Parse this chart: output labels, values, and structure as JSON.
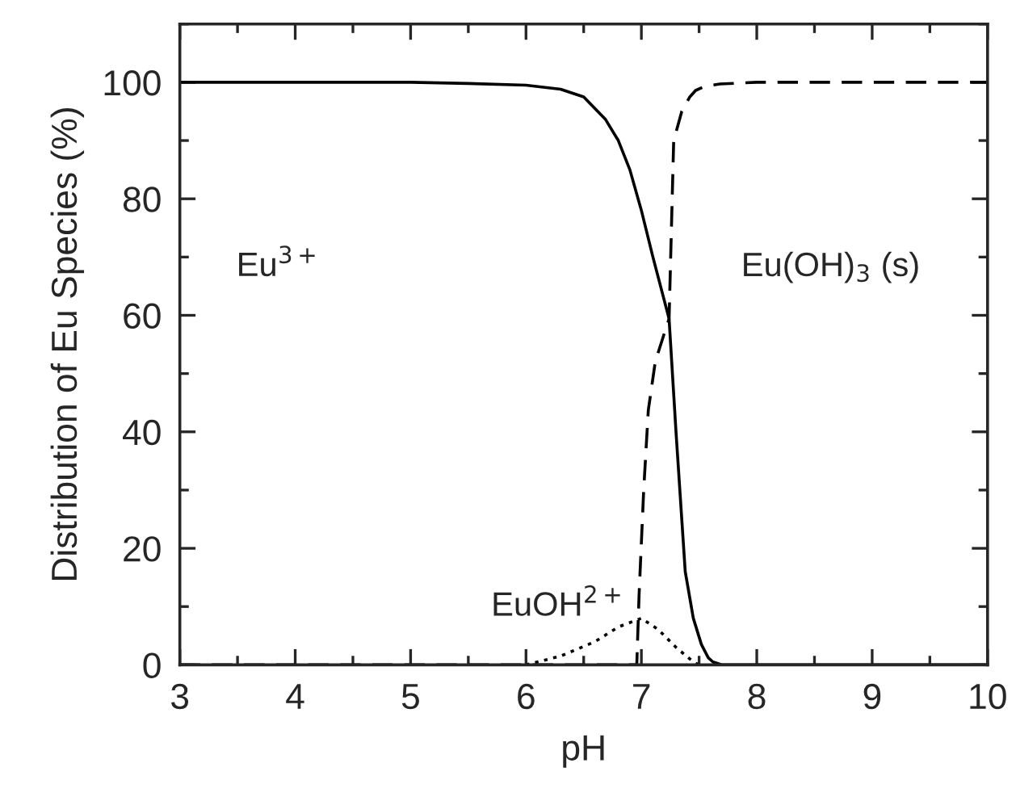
{
  "chart_data": {
    "type": "line",
    "xlabel": "pH",
    "ylabel": "Distribution of Eu Species (%)",
    "xlim": [
      3,
      10
    ],
    "ylim": [
      0,
      110
    ],
    "xticks": [
      3,
      4,
      5,
      6,
      7,
      8,
      9,
      10
    ],
    "yticks": [
      0,
      20,
      40,
      60,
      80,
      100
    ],
    "grid": false,
    "legend": false,
    "marker": "none",
    "series": [
      {
        "color": "#000000",
        "line_style": "solid",
        "x": [
          3,
          4,
          5,
          5.5,
          6,
          6.3,
          6.5,
          6.69,
          6.8,
          6.9,
          7.0,
          7.1,
          7.24,
          7.3,
          7.38,
          7.45,
          7.52,
          7.58,
          7.62,
          7.7,
          8,
          9,
          10
        ],
        "values": [
          100,
          100,
          100,
          99.8,
          99.5,
          98.8,
          97.5,
          93.6,
          90,
          85,
          78,
          70,
          59.4,
          40,
          16,
          8,
          3.5,
          1.2,
          0.5,
          0,
          0,
          0,
          0
        ]
      },
      {
        "color": "#000000",
        "line_style": "dashed",
        "x": [
          3,
          5,
          6,
          6.96,
          6.98,
          7.02,
          7.06,
          7.12,
          7.2,
          7.24,
          7.28,
          7.35,
          7.42,
          7.47,
          7.55,
          7.68,
          8,
          9,
          10
        ],
        "values": [
          0,
          0,
          0,
          0,
          12,
          30,
          43.7,
          52,
          57,
          59.4,
          90,
          95,
          97.5,
          98.6,
          99.3,
          99.7,
          100,
          100,
          100
        ]
      },
      {
        "color": "#000000",
        "line_style": "dotted",
        "x": [
          6.0,
          6.3,
          6.6,
          6.8,
          7.0,
          7.15,
          7.3,
          7.45,
          7.5
        ],
        "values": [
          0,
          1.5,
          4,
          6.5,
          8,
          6,
          3,
          0.5,
          0
        ]
      }
    ],
    "annotations": [
      "Eu$^{3+}$",
      "Eu(OH)$_{3}$ (s)",
      "EuOH$^{2+}$"
    ]
  }
}
